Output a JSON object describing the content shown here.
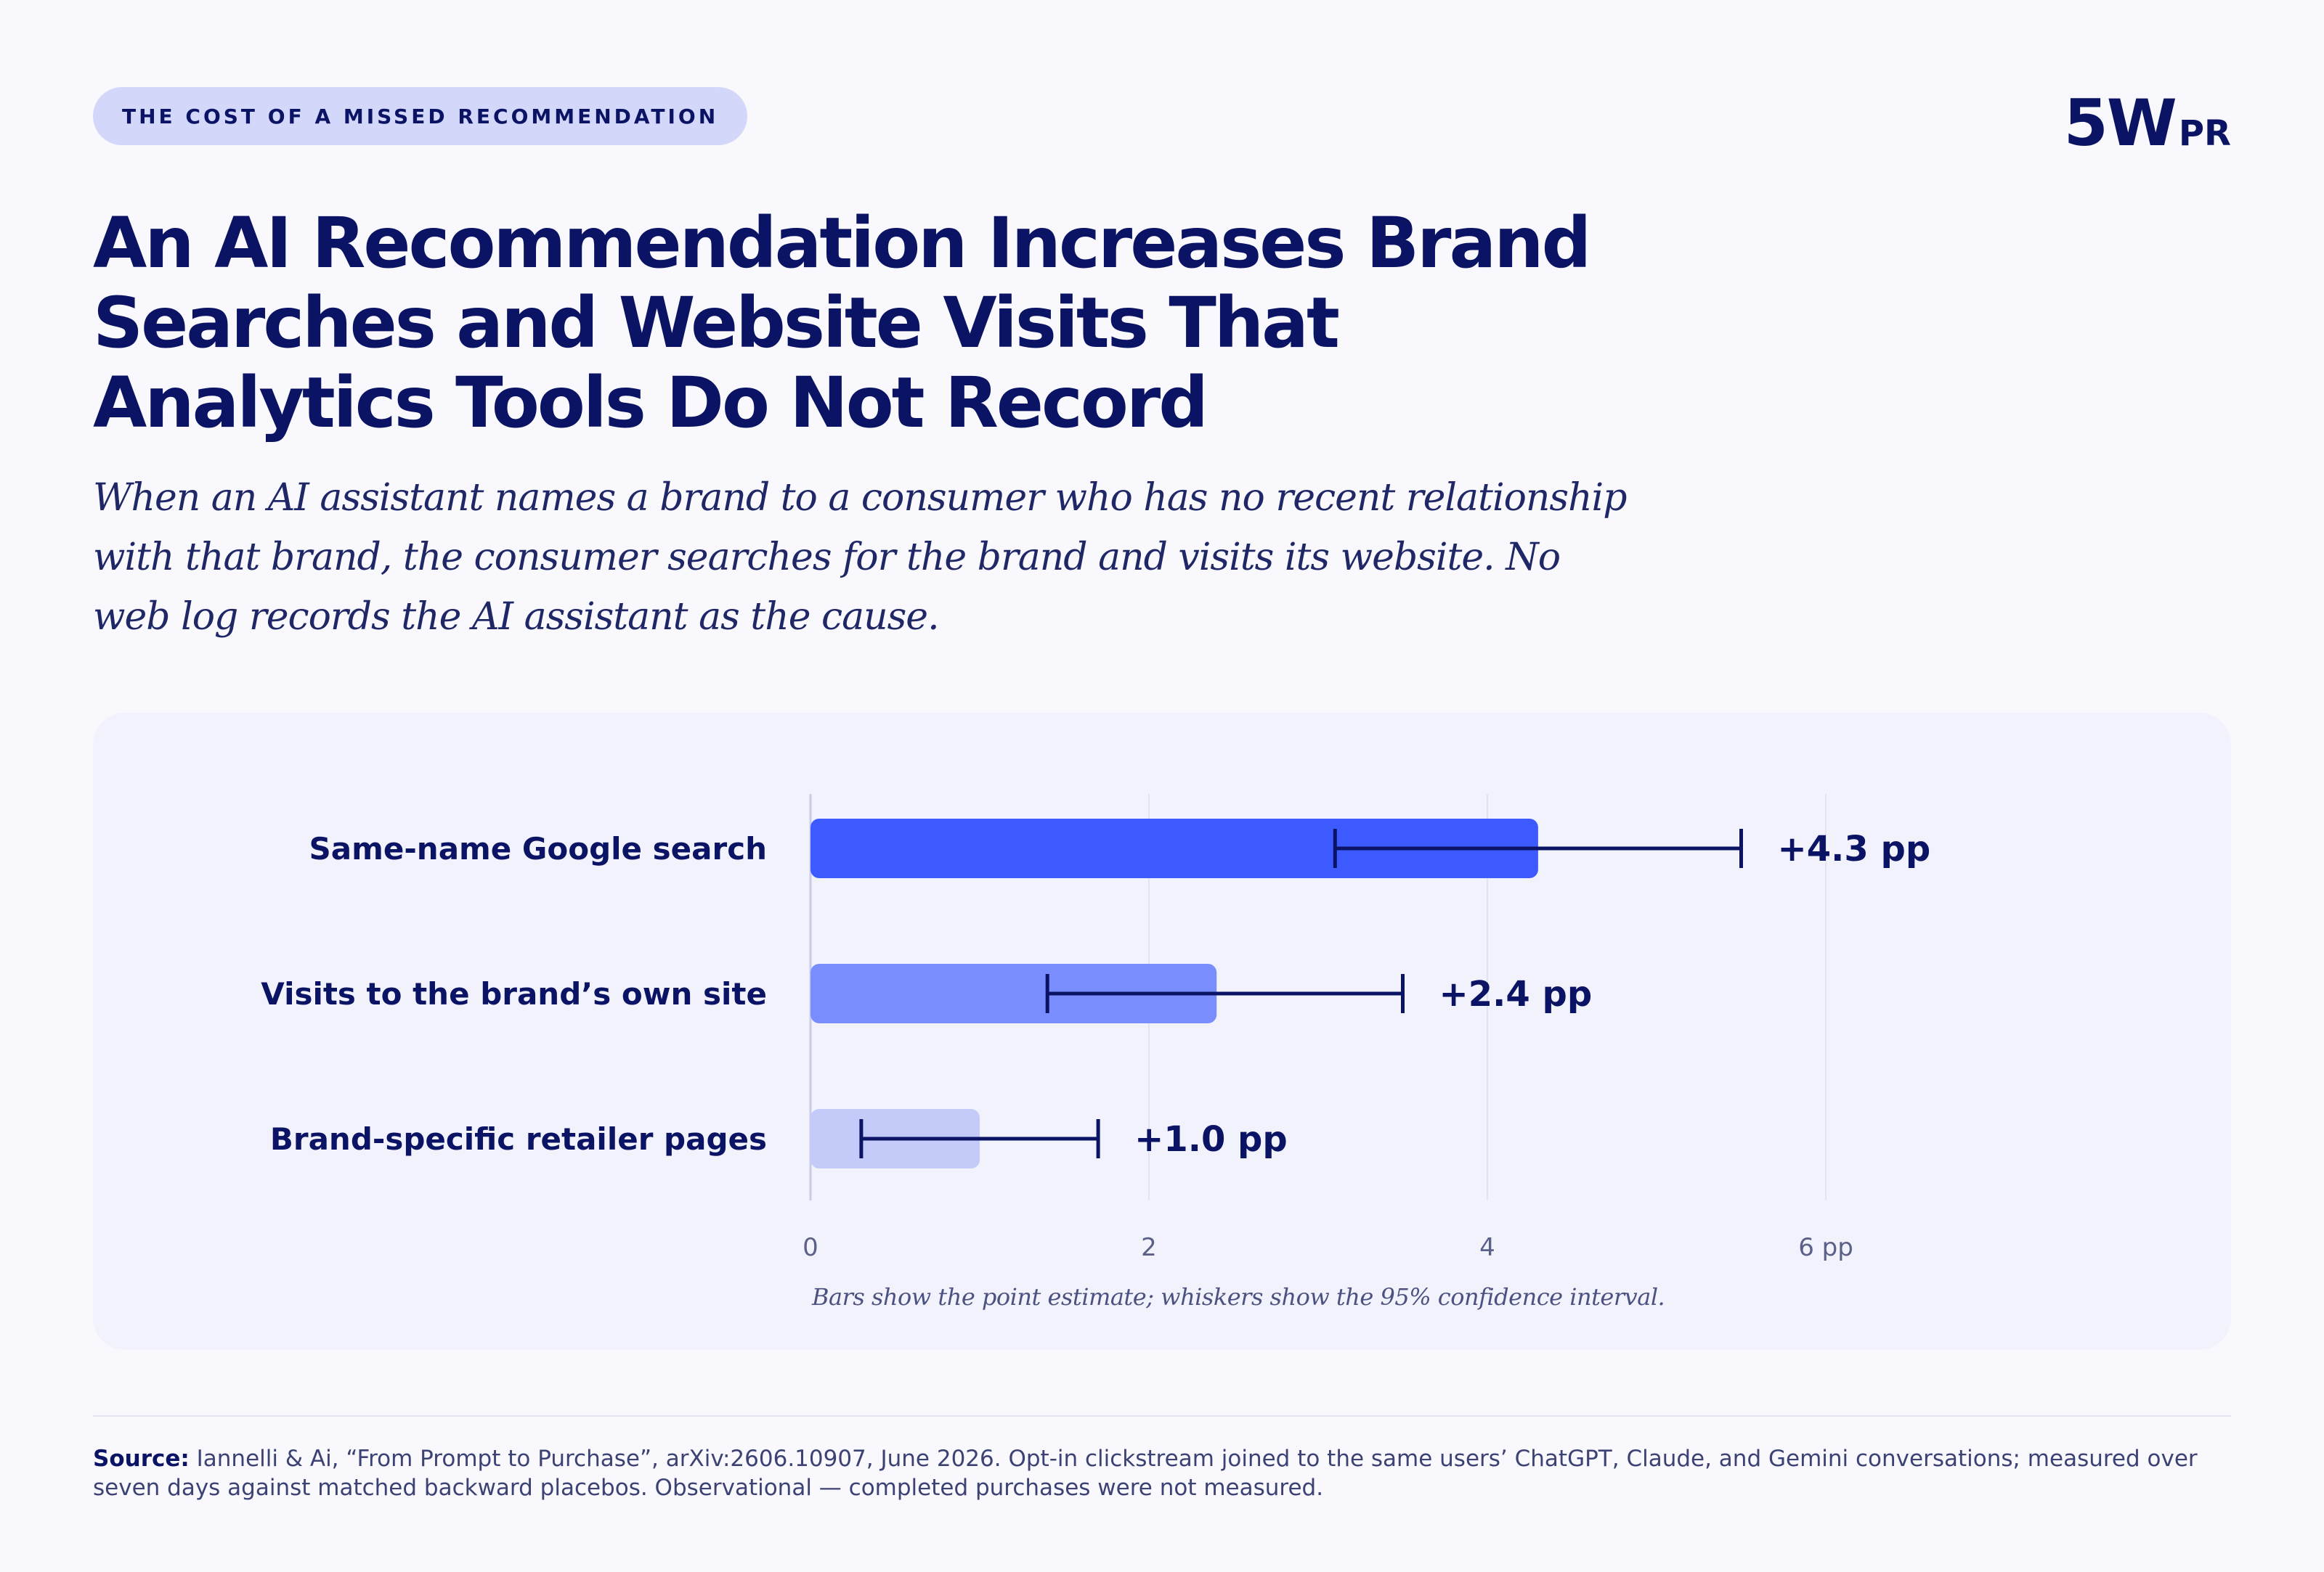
{
  "eyebrow": "THE COST OF A MISSED RECOMMENDATION",
  "logo": {
    "main": "5W",
    "suffix": "PR"
  },
  "title": "An AI Recommendation Increases Brand Searches and Website Visits That Analytics Tools Do Not Record",
  "subtitle": "When an AI assistant names a brand to a consumer who has no recent relationship with that brand, the consumer searches for the brand and visits its website. No web log records the AI assistant as the cause.",
  "chart_data": {
    "type": "bar",
    "orientation": "horizontal",
    "categories": [
      "Same-name Google search",
      "Visits to the brand’s own site",
      "Brand-specific retailer pages"
    ],
    "values": [
      4.3,
      2.4,
      1.0
    ],
    "ci_low": [
      3.1,
      1.4,
      0.3
    ],
    "ci_high": [
      5.5,
      3.5,
      1.7
    ],
    "value_labels": [
      "+4.3 pp",
      "+2.4 pp",
      "+1.0 pp"
    ],
    "bar_colors": [
      "#3d5afe",
      "#7a8dfd",
      "#c5cbf8"
    ],
    "error_color": "#0b1464",
    "xlim": [
      0,
      6
    ],
    "ticks": [
      0,
      2,
      4,
      6
    ],
    "tick_labels": [
      "0",
      "2",
      "4",
      "6 pp"
    ],
    "grid": true,
    "footnote": "Bars show the point estimate; whiskers show the 95% confidence interval."
  },
  "source": {
    "label": "Source:",
    "text": "Iannelli & Ai, “From Prompt to Purchase”, arXiv:2606.10907, June 2026. Opt-in clickstream joined to the same users’ ChatGPT, Claude, and Gemini conversations; measured over seven days against matched backward placebos. Observational — completed purchases were not measured."
  }
}
